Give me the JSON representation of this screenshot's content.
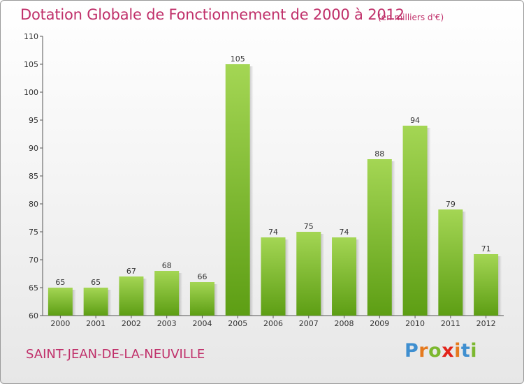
{
  "chart_data": {
    "type": "bar",
    "title": "Dotation Globale de Fonctionnement de 2000 à 2012",
    "subtitle": "(en milliers d'€)",
    "categories": [
      "2000",
      "2001",
      "2002",
      "2003",
      "2004",
      "2005",
      "2006",
      "2007",
      "2008",
      "2009",
      "2010",
      "2011",
      "2012"
    ],
    "values": [
      65,
      65,
      67,
      68,
      66,
      105,
      74,
      75,
      74,
      88,
      94,
      79,
      71
    ],
    "ylim": [
      60,
      110
    ],
    "yticks": [
      60,
      65,
      70,
      75,
      80,
      85,
      90,
      95,
      100,
      105,
      110
    ],
    "xlabel": "",
    "ylabel": "",
    "grid": false,
    "bar_color": "#7bbf2a",
    "title_color": "#c0306a"
  },
  "footer": {
    "commune": "SAINT-JEAN-DE-LA-NEUVILLE"
  },
  "logo": {
    "letters": [
      "P",
      "r",
      "o",
      "x",
      "i",
      "t",
      "i"
    ],
    "colors": [
      "#3f8fd0",
      "#e57a1f",
      "#7cb82f",
      "#e2231a",
      "#e57a1f",
      "#3f8fd0",
      "#7cb82f"
    ]
  }
}
